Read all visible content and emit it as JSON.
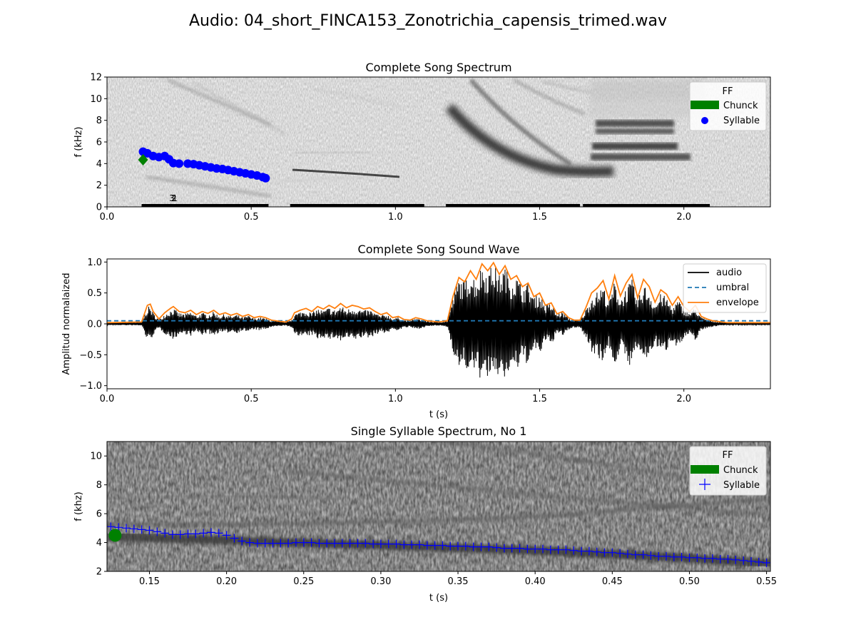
{
  "figure": {
    "title": "Audio: 04_short_FINCA153_Zonotrichia_capensis_trimed.wav"
  },
  "colors": {
    "ff_blue": "#0000ff",
    "chunk_green": "#008000",
    "audio_black": "#000000",
    "umbral_blue": "#1f77b4",
    "envelope_orange": "#ff7f0e"
  },
  "chart_data": [
    {
      "type": "heatmap",
      "title": "Complete Song Spectrum",
      "xlabel": "",
      "ylabel": "f (kHz)",
      "xlim": [
        0,
        2.3
      ],
      "ylim": [
        0,
        12
      ],
      "x_ticks": [
        "0.0",
        "0.5",
        "1.0",
        "1.5",
        "2.0"
      ],
      "y_ticks": [
        "0",
        "2",
        "4",
        "6",
        "8",
        "10",
        "12"
      ],
      "legend": {
        "title": "FF",
        "position": "top-right",
        "entries": [
          "Chunck",
          "Syllable"
        ]
      },
      "syllable_points": {
        "x": [
          0.125,
          0.14,
          0.16,
          0.18,
          0.2,
          0.215,
          0.23,
          0.25,
          0.28,
          0.3,
          0.32,
          0.34,
          0.36,
          0.38,
          0.4,
          0.42,
          0.44,
          0.46,
          0.48,
          0.5,
          0.52,
          0.54,
          0.55
        ],
        "y": [
          5.1,
          4.95,
          4.7,
          4.6,
          4.7,
          4.4,
          4.05,
          4.0,
          4.0,
          3.95,
          3.85,
          3.75,
          3.65,
          3.55,
          3.5,
          3.4,
          3.3,
          3.2,
          3.1,
          3.0,
          2.9,
          2.75,
          2.65
        ]
      },
      "chunk_points": {
        "x": [
          0.125
        ],
        "y": [
          4.35
        ]
      },
      "segment_labels": [
        {
          "text": "3",
          "x": 0.225,
          "y": 0.8
        },
        {
          "text": "2",
          "x": 0.232,
          "y": 0.8
        },
        {
          "text": "1",
          "x": 0.235,
          "y": 0.8
        }
      ],
      "segments": [
        [
          0.12,
          0.56
        ],
        [
          0.635,
          1.1
        ],
        [
          1.175,
          1.64
        ],
        [
          1.65,
          2.09
        ]
      ]
    },
    {
      "type": "line",
      "title": "Complete Song Sound Wave",
      "xlabel": "t (s)",
      "ylabel": "Amplitud normalaized",
      "xlim": [
        0,
        2.3
      ],
      "ylim": [
        -1.05,
        1.05
      ],
      "x_ticks": [
        "0.0",
        "0.5",
        "1.0",
        "1.5",
        "2.0"
      ],
      "y_ticks": [
        "−1.0",
        "−0.5",
        "0.0",
        "0.5",
        "1.0"
      ],
      "legend": {
        "position": "top-right"
      },
      "series": [
        {
          "name": "audio",
          "style": "solid"
        },
        {
          "name": "umbral",
          "style": "dashed",
          "value": 0.05
        },
        {
          "name": "envelope",
          "style": "solid",
          "x": [
            0,
            0.12,
            0.14,
            0.15,
            0.16,
            0.18,
            0.2,
            0.22,
            0.23,
            0.25,
            0.27,
            0.29,
            0.31,
            0.33,
            0.35,
            0.37,
            0.39,
            0.41,
            0.43,
            0.45,
            0.47,
            0.49,
            0.51,
            0.53,
            0.55,
            0.57,
            0.6,
            0.62,
            0.64,
            0.65,
            0.67,
            0.69,
            0.71,
            0.73,
            0.75,
            0.77,
            0.79,
            0.81,
            0.83,
            0.85,
            0.87,
            0.89,
            0.91,
            0.93,
            0.95,
            0.97,
            0.99,
            1.01,
            1.03,
            1.05,
            1.07,
            1.09,
            1.11,
            1.15,
            1.18,
            1.2,
            1.22,
            1.24,
            1.26,
            1.28,
            1.3,
            1.32,
            1.34,
            1.36,
            1.38,
            1.4,
            1.42,
            1.44,
            1.46,
            1.48,
            1.5,
            1.52,
            1.54,
            1.56,
            1.58,
            1.6,
            1.62,
            1.64,
            1.66,
            1.68,
            1.7,
            1.72,
            1.74,
            1.76,
            1.78,
            1.8,
            1.82,
            1.84,
            1.86,
            1.88,
            1.9,
            1.92,
            1.94,
            1.96,
            1.98,
            2.0,
            2.02,
            2.04,
            2.06,
            2.08,
            2.1,
            2.15,
            2.3
          ],
          "y": [
            0.02,
            0.03,
            0.3,
            0.32,
            0.2,
            0.08,
            0.18,
            0.25,
            0.28,
            0.2,
            0.18,
            0.22,
            0.15,
            0.2,
            0.17,
            0.22,
            0.15,
            0.18,
            0.14,
            0.17,
            0.12,
            0.15,
            0.1,
            0.12,
            0.1,
            0.06,
            0.04,
            0.03,
            0.08,
            0.18,
            0.22,
            0.25,
            0.2,
            0.28,
            0.24,
            0.3,
            0.25,
            0.33,
            0.26,
            0.3,
            0.28,
            0.24,
            0.26,
            0.2,
            0.15,
            0.18,
            0.1,
            0.12,
            0.07,
            0.06,
            0.1,
            0.08,
            0.05,
            0.03,
            0.05,
            0.45,
            0.75,
            0.68,
            0.86,
            0.72,
            0.97,
            0.86,
            0.99,
            0.8,
            0.94,
            0.72,
            0.78,
            0.6,
            0.66,
            0.44,
            0.5,
            0.3,
            0.34,
            0.16,
            0.2,
            0.1,
            0.06,
            0.06,
            0.26,
            0.5,
            0.58,
            0.7,
            0.4,
            0.78,
            0.45,
            0.66,
            0.8,
            0.42,
            0.72,
            0.6,
            0.35,
            0.55,
            0.48,
            0.3,
            0.44,
            0.28,
            0.2,
            0.3,
            0.12,
            0.08,
            0.05,
            0.02,
            0.02
          ]
        }
      ]
    },
    {
      "type": "heatmap",
      "title": "Single Syllable Spectrum, No 1",
      "xlabel": "t (s)",
      "ylabel": "f (khz)",
      "xlim": [
        0.1225,
        0.5525
      ],
      "ylim": [
        2,
        11
      ],
      "x_ticks": [
        "0.15",
        "0.20",
        "0.25",
        "0.30",
        "0.35",
        "0.40",
        "0.45",
        "0.50",
        "0.55"
      ],
      "y_ticks": [
        "2",
        "4",
        "6",
        "8",
        "10"
      ],
      "legend": {
        "title": "FF",
        "position": "top-right",
        "entries": [
          "Chunck",
          "Syllable"
        ]
      },
      "syllable_points": {
        "x": [
          0.125,
          0.13,
          0.135,
          0.14,
          0.145,
          0.15,
          0.155,
          0.16,
          0.165,
          0.17,
          0.175,
          0.18,
          0.185,
          0.19,
          0.195,
          0.2,
          0.205,
          0.21,
          0.215,
          0.22,
          0.225,
          0.23,
          0.235,
          0.24,
          0.245,
          0.25,
          0.255,
          0.26,
          0.265,
          0.27,
          0.275,
          0.28,
          0.285,
          0.29,
          0.295,
          0.3,
          0.305,
          0.31,
          0.315,
          0.32,
          0.325,
          0.33,
          0.335,
          0.34,
          0.345,
          0.35,
          0.355,
          0.36,
          0.365,
          0.37,
          0.375,
          0.38,
          0.385,
          0.39,
          0.395,
          0.4,
          0.405,
          0.41,
          0.415,
          0.42,
          0.425,
          0.43,
          0.435,
          0.44,
          0.445,
          0.45,
          0.455,
          0.46,
          0.465,
          0.47,
          0.475,
          0.48,
          0.485,
          0.49,
          0.495,
          0.5,
          0.505,
          0.51,
          0.515,
          0.52,
          0.525,
          0.53,
          0.535,
          0.54,
          0.545,
          0.55
        ],
        "y": [
          5.1,
          5.05,
          5.0,
          4.95,
          4.9,
          4.85,
          4.75,
          4.65,
          4.55,
          4.55,
          4.6,
          4.6,
          4.65,
          4.7,
          4.65,
          4.5,
          4.3,
          4.1,
          4.0,
          3.95,
          3.95,
          3.95,
          3.95,
          3.95,
          4.0,
          4.0,
          4.0,
          3.95,
          3.95,
          3.95,
          3.95,
          3.95,
          3.95,
          3.95,
          3.9,
          3.9,
          3.9,
          3.9,
          3.85,
          3.85,
          3.85,
          3.8,
          3.8,
          3.8,
          3.75,
          3.75,
          3.75,
          3.7,
          3.7,
          3.7,
          3.65,
          3.6,
          3.6,
          3.6,
          3.55,
          3.55,
          3.55,
          3.5,
          3.5,
          3.5,
          3.45,
          3.4,
          3.4,
          3.35,
          3.3,
          3.3,
          3.25,
          3.2,
          3.15,
          3.15,
          3.1,
          3.05,
          3.05,
          3.0,
          3.0,
          2.95,
          2.95,
          2.9,
          2.9,
          2.85,
          2.85,
          2.8,
          2.75,
          2.7,
          2.65,
          2.6
        ]
      },
      "chunk_points": {
        "x": [
          0.125
        ],
        "y": [
          4.5
        ]
      }
    }
  ]
}
